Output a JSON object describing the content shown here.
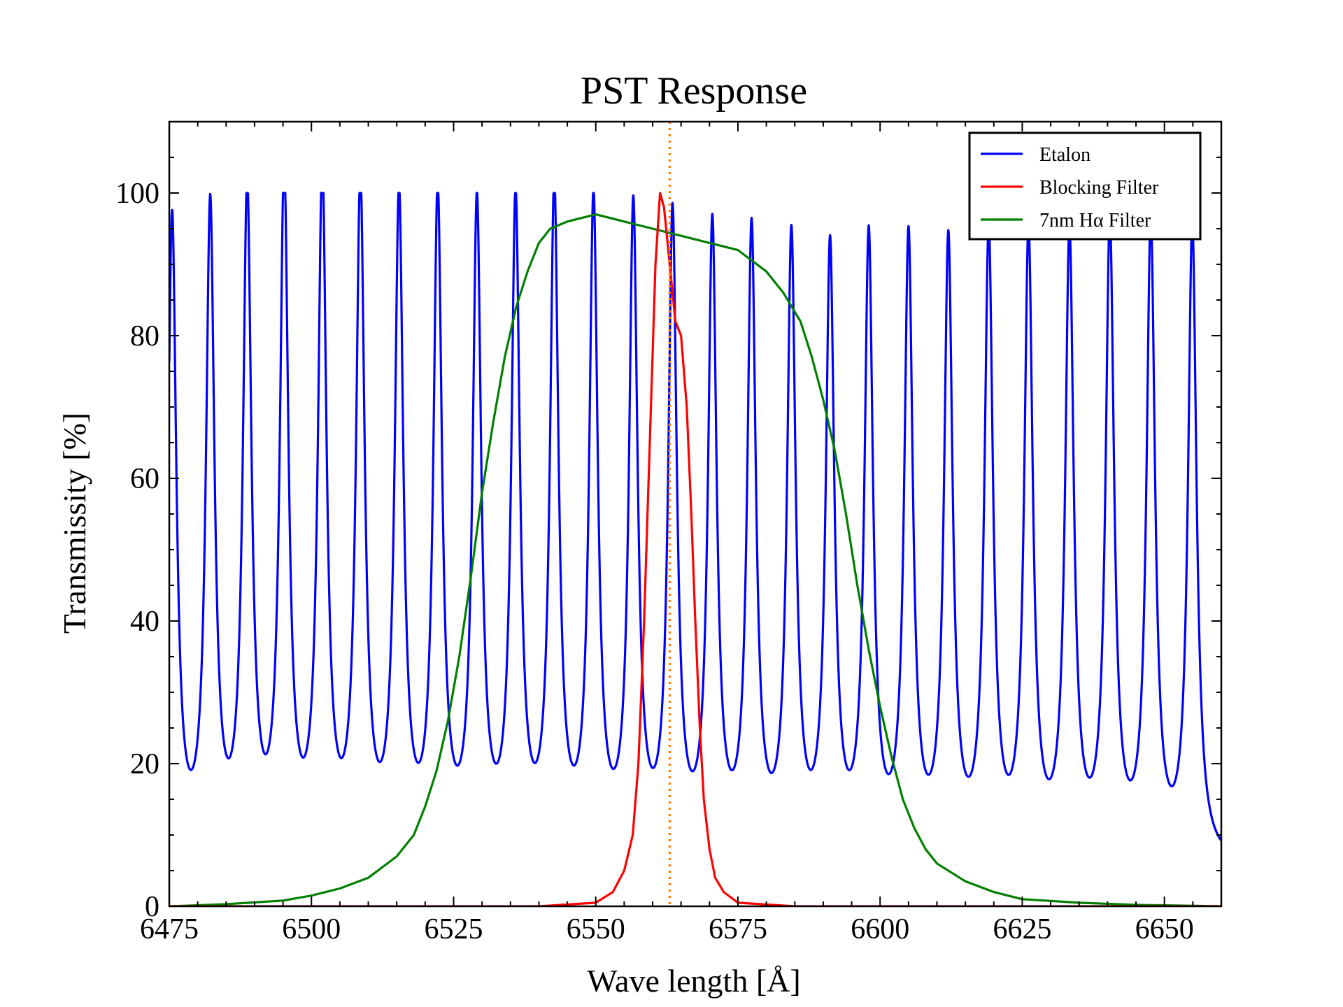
{
  "chart_data": {
    "type": "line",
    "title": "PST Response",
    "xlabel": "Wave length [Å]",
    "ylabel": "Transmissity [%]",
    "xlim": [
      6475,
      6660
    ],
    "ylim": [
      0,
      110
    ],
    "xticks": [
      6475,
      6500,
      6525,
      6550,
      6575,
      6600,
      6625,
      6650
    ],
    "yticks": [
      0,
      20,
      40,
      60,
      80,
      100
    ],
    "grid": false,
    "legend_position": "top-right",
    "reference_line": {
      "x": 6563,
      "style": "dotted",
      "color": "#ff7f0e"
    },
    "series": [
      {
        "name": "Etalon",
        "color": "#0000ff",
        "baseline": 5.5,
        "fwhm": 0.9,
        "peaks": [
          {
            "x": 6475.5,
            "y": 95
          },
          {
            "x": 6482.2,
            "y": 95.5
          },
          {
            "x": 6488.7,
            "y": 97.5
          },
          {
            "x": 6495.2,
            "y": 100
          },
          {
            "x": 6501.9,
            "y": 100
          },
          {
            "x": 6508.6,
            "y": 98.5
          },
          {
            "x": 6515.4,
            "y": 96.5
          },
          {
            "x": 6522.2,
            "y": 97
          },
          {
            "x": 6529.1,
            "y": 95.5
          },
          {
            "x": 6535.9,
            "y": 96
          },
          {
            "x": 6542.7,
            "y": 97.5
          },
          {
            "x": 6549.6,
            "y": 96
          },
          {
            "x": 6556.6,
            "y": 95
          },
          {
            "x": 6563.5,
            "y": 94
          },
          {
            "x": 6570.5,
            "y": 92.5
          },
          {
            "x": 6577.4,
            "y": 92
          },
          {
            "x": 6584.4,
            "y": 91
          },
          {
            "x": 6591.2,
            "y": 89.5
          },
          {
            "x": 6598.0,
            "y": 91
          },
          {
            "x": 6605.0,
            "y": 91
          },
          {
            "x": 6612.0,
            "y": 90.5
          },
          {
            "x": 6619.1,
            "y": 91.5
          },
          {
            "x": 6626.1,
            "y": 91.5
          },
          {
            "x": 6633.3,
            "y": 91.5
          },
          {
            "x": 6640.4,
            "y": 93
          },
          {
            "x": 6647.6,
            "y": 93.5
          },
          {
            "x": 6654.9,
            "y": 94
          }
        ]
      },
      {
        "name": "Blocking Filter",
        "color": "#ff0000",
        "points": [
          [
            6475,
            0
          ],
          [
            6540,
            0
          ],
          [
            6550,
            0.5
          ],
          [
            6553,
            2
          ],
          [
            6555,
            5
          ],
          [
            6556.5,
            10
          ],
          [
            6557.5,
            20
          ],
          [
            6558.5,
            40
          ],
          [
            6559.5,
            65
          ],
          [
            6560.5,
            90
          ],
          [
            6561.3,
            100
          ],
          [
            6562,
            98
          ],
          [
            6563,
            90
          ],
          [
            6564,
            82
          ],
          [
            6565,
            80
          ],
          [
            6566,
            70
          ],
          [
            6566.8,
            55
          ],
          [
            6567.5,
            40
          ],
          [
            6568.3,
            25
          ],
          [
            6569,
            15
          ],
          [
            6570,
            8
          ],
          [
            6571,
            4
          ],
          [
            6572.5,
            2
          ],
          [
            6575,
            0.5
          ],
          [
            6585,
            0
          ],
          [
            6660,
            0
          ]
        ]
      },
      {
        "name": "7nm Hα Filter",
        "color": "#007f00",
        "points": [
          [
            6475,
            0
          ],
          [
            6485,
            0.3
          ],
          [
            6495,
            0.8
          ],
          [
            6500,
            1.5
          ],
          [
            6505,
            2.5
          ],
          [
            6510,
            4
          ],
          [
            6515,
            7
          ],
          [
            6518,
            10
          ],
          [
            6520,
            14
          ],
          [
            6522,
            19
          ],
          [
            6524,
            26
          ],
          [
            6526,
            35
          ],
          [
            6528,
            46
          ],
          [
            6530,
            58
          ],
          [
            6532,
            68
          ],
          [
            6534,
            77
          ],
          [
            6536,
            84
          ],
          [
            6538,
            89
          ],
          [
            6540,
            93
          ],
          [
            6542,
            95
          ],
          [
            6545,
            96
          ],
          [
            6550,
            97
          ],
          [
            6555,
            96
          ],
          [
            6560,
            95
          ],
          [
            6565,
            94
          ],
          [
            6570,
            93
          ],
          [
            6575,
            92
          ],
          [
            6580,
            89
          ],
          [
            6583,
            86
          ],
          [
            6586,
            82
          ],
          [
            6588,
            77
          ],
          [
            6590,
            71
          ],
          [
            6592,
            64
          ],
          [
            6594,
            55
          ],
          [
            6596,
            45
          ],
          [
            6598,
            36
          ],
          [
            6600,
            28
          ],
          [
            6602,
            21
          ],
          [
            6604,
            15
          ],
          [
            6606,
            11
          ],
          [
            6608,
            8
          ],
          [
            6610,
            6
          ],
          [
            6615,
            3.5
          ],
          [
            6620,
            2
          ],
          [
            6625,
            1
          ],
          [
            6635,
            0.5
          ],
          [
            6645,
            0.2
          ],
          [
            6660,
            0
          ]
        ]
      }
    ]
  }
}
